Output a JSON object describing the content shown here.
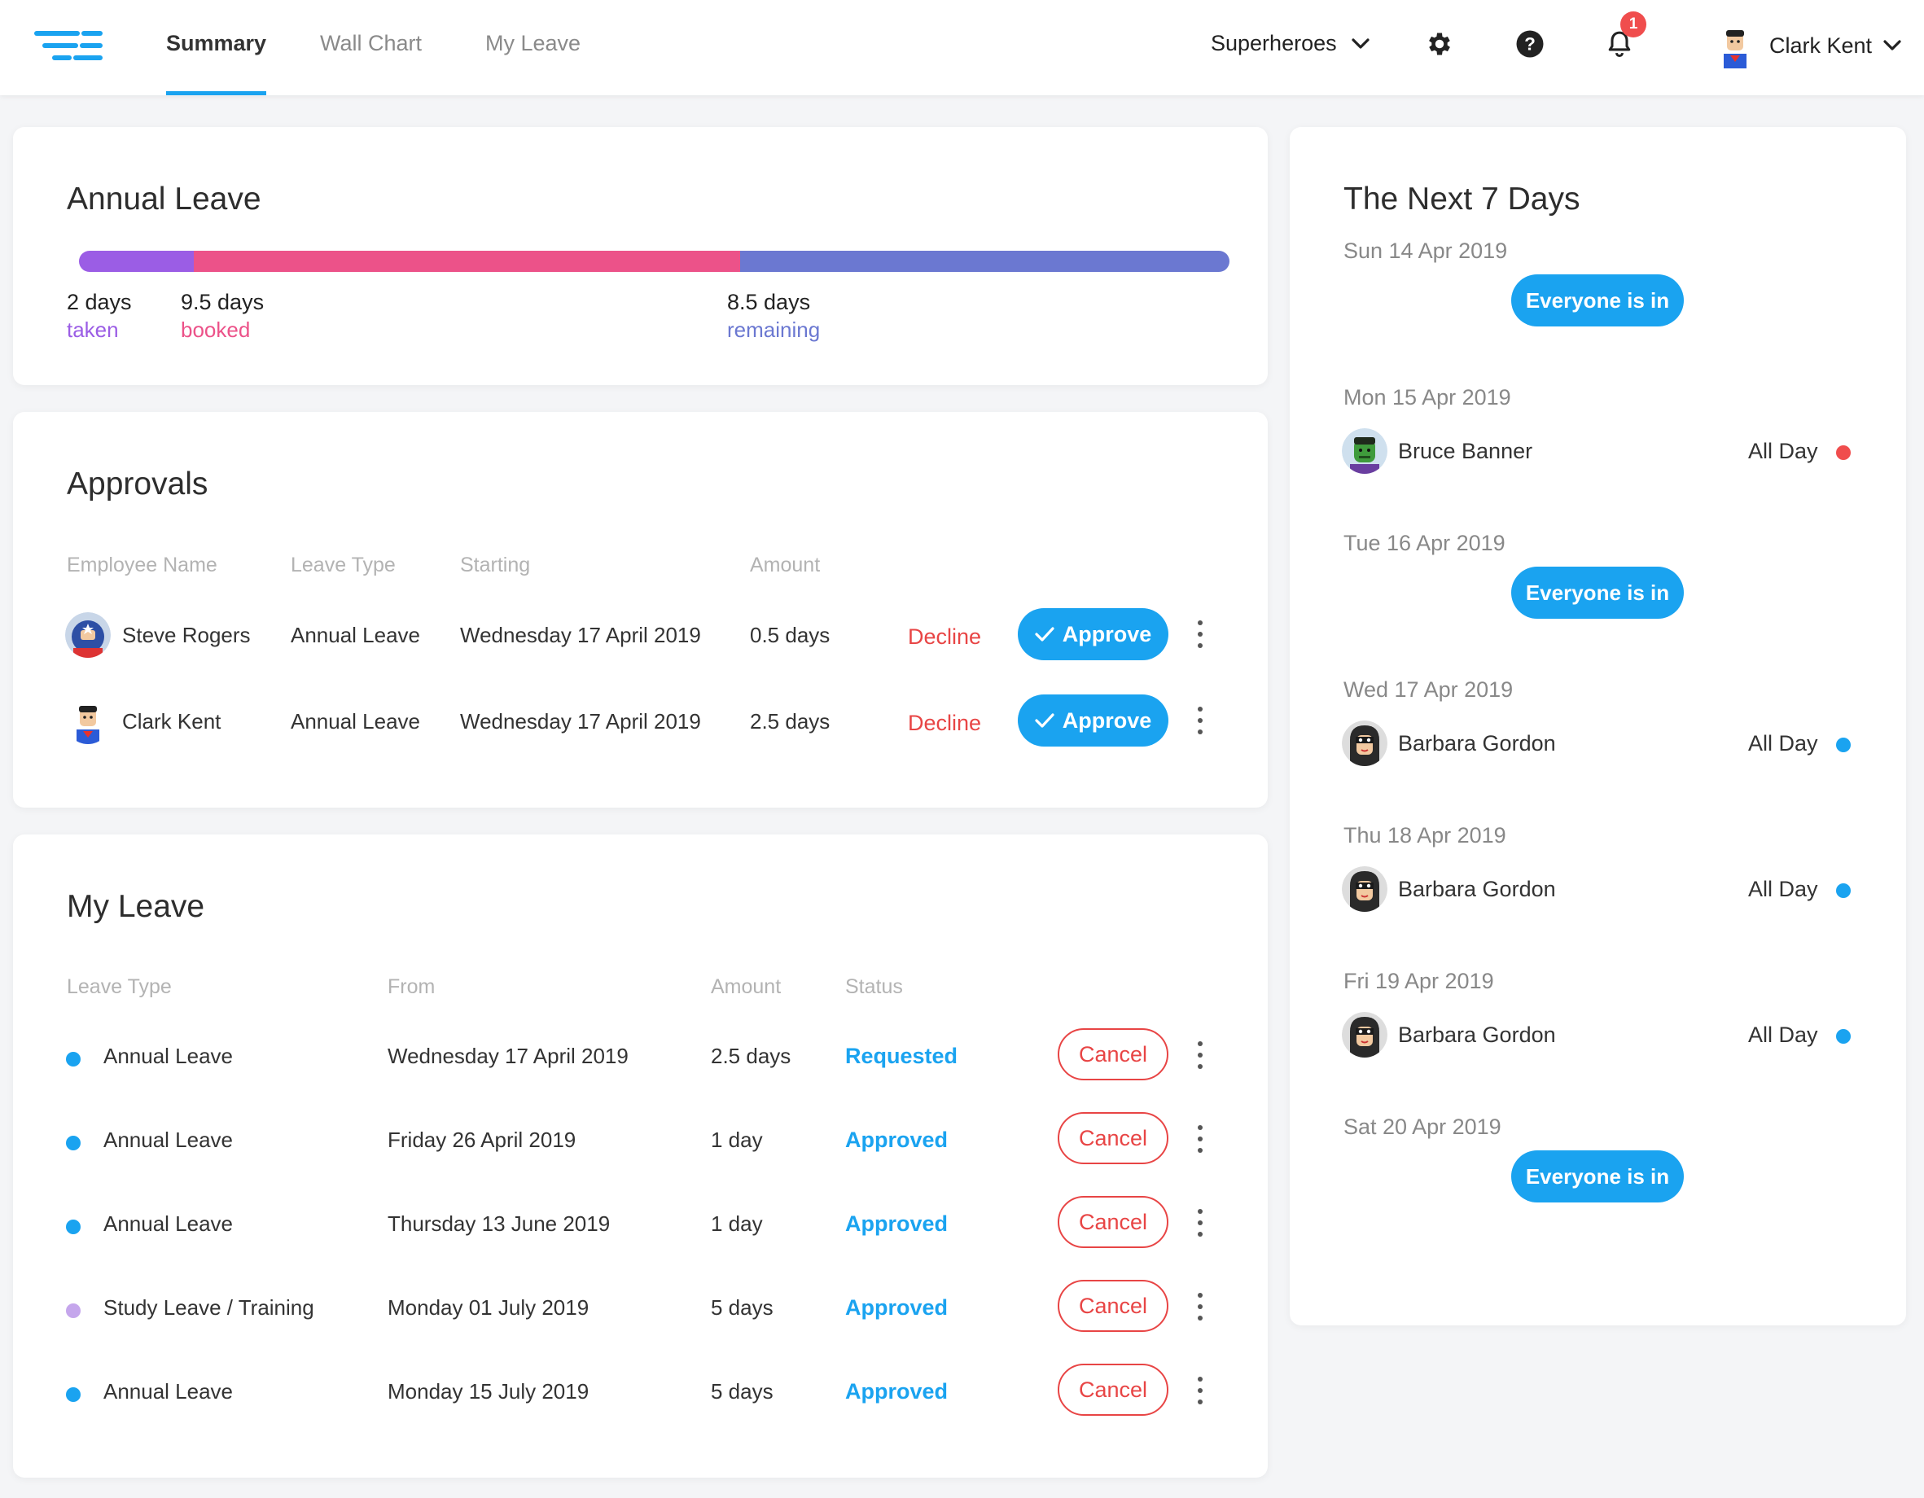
{
  "nav": {
    "tabs": [
      "Summary",
      "Wall Chart",
      "My Leave"
    ],
    "org": "Superheroes",
    "notifications": "1",
    "user": "Clark Kent"
  },
  "annual": {
    "title": "Annual Leave",
    "taken_num": "2  days",
    "taken_label": "taken",
    "booked_num": "9.5  days",
    "booked_label": "booked",
    "remaining_num": "8.5  days",
    "remaining_label": "remaining",
    "taken_days": 2,
    "booked_days": 9.5,
    "remaining_days": 8.5,
    "colors": {
      "taken": "#9b5de5",
      "booked": "#ec5289",
      "remaining": "#6b78d1"
    }
  },
  "approvals": {
    "title": "Approvals",
    "headers": [
      "Employee Name",
      "Leave Type",
      "Starting",
      "Amount"
    ],
    "rows": [
      {
        "name": "Steve Rogers",
        "type": "Annual Leave",
        "start": "Wednesday 17 April 2019",
        "amount": "0.5 days",
        "decline": "Decline",
        "approve": "Approve"
      },
      {
        "name": "Clark Kent",
        "type": "Annual Leave",
        "start": "Wednesday 17 April 2019",
        "amount": "2.5 days",
        "decline": "Decline",
        "approve": "Approve"
      }
    ]
  },
  "myleave": {
    "title": "My Leave",
    "headers": [
      "Leave Type",
      "From",
      "Amount",
      "Status"
    ],
    "rows": [
      {
        "type": "Annual Leave",
        "from": "Wednesday 17 April 2019",
        "amount": "2.5 days",
        "status": "Requested",
        "cancel": "Cancel",
        "dot": "#1aa3f0"
      },
      {
        "type": "Annual Leave",
        "from": "Friday 26 April 2019",
        "amount": "1 day",
        "status": "Approved",
        "cancel": "Cancel",
        "dot": "#1aa3f0"
      },
      {
        "type": "Annual Leave",
        "from": "Thursday 13 June 2019",
        "amount": "1 day",
        "status": "Approved",
        "cancel": "Cancel",
        "dot": "#1aa3f0"
      },
      {
        "type": "Study Leave / Training",
        "from": "Monday 01 July 2019",
        "amount": "5 days",
        "status": "Approved",
        "cancel": "Cancel",
        "dot": "#c5a6ec"
      },
      {
        "type": "Annual Leave",
        "from": "Monday 15 July 2019",
        "amount": "5 days",
        "status": "Approved",
        "cancel": "Cancel",
        "dot": "#1aa3f0"
      }
    ]
  },
  "next7": {
    "title": "The Next 7 Days",
    "days": [
      {
        "label": "Sun 14 Apr 2019",
        "everyone": "Everyone is in"
      },
      {
        "label": "Mon 15 Apr 2019",
        "person": "Bruce Banner",
        "when": "All Day",
        "color": "#f04d4d"
      },
      {
        "label": "Tue 16 Apr 2019",
        "everyone": "Everyone is in"
      },
      {
        "label": "Wed 17 Apr 2019",
        "person": "Barbara Gordon",
        "when": "All Day",
        "color": "#1aa3f0"
      },
      {
        "label": "Thu 18 Apr 2019",
        "person": "Barbara Gordon",
        "when": "All Day",
        "color": "#1aa3f0"
      },
      {
        "label": "Fri 19 Apr 2019",
        "person": "Barbara Gordon",
        "when": "All Day",
        "color": "#1aa3f0"
      },
      {
        "label": "Sat 20 Apr 2019",
        "everyone": "Everyone is in"
      }
    ]
  }
}
